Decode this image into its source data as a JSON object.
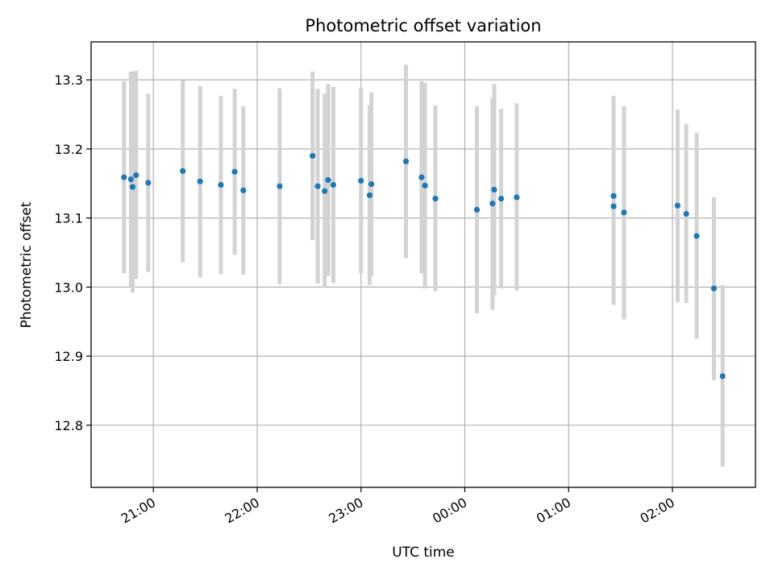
{
  "chart_data": {
    "type": "scatter",
    "title": "Photometric offset variation",
    "xlabel": "UTC time",
    "ylabel": "Photometric offset",
    "x_tick_labels": [
      "21:00",
      "22:00",
      "23:00",
      "00:00",
      "01:00",
      "02:00"
    ],
    "x_tick_values": [
      "21:00",
      "22:00",
      "23:00",
      "00:00",
      "01:00",
      "02:00"
    ],
    "y_tick_labels": [
      "12.8",
      "12.9",
      "13.0",
      "13.1",
      "13.2",
      "13.3"
    ],
    "y_tick_values": [
      12.8,
      12.9,
      13.0,
      13.1,
      13.2,
      13.3
    ],
    "xlim": [
      "20:24",
      "02:48"
    ],
    "ylim": [
      12.71,
      13.355
    ],
    "grid": true,
    "colors": {
      "marker": "#1f77b4",
      "errorbar": "#d3d3d3",
      "grid": "#b0b0b0"
    },
    "points": [
      {
        "x": "20:43",
        "y": 13.159,
        "lo": 13.02,
        "hi": 13.298
      },
      {
        "x": "20:47",
        "y": 13.156,
        "lo": 13.0,
        "hi": 13.312
      },
      {
        "x": "20:48",
        "y": 13.145,
        "lo": 12.992,
        "hi": 13.312
      },
      {
        "x": "20:50",
        "y": 13.162,
        "lo": 13.012,
        "hi": 13.313
      },
      {
        "x": "20:57",
        "y": 13.151,
        "lo": 13.022,
        "hi": 13.28
      },
      {
        "x": "21:17",
        "y": 13.168,
        "lo": 13.036,
        "hi": 13.299
      },
      {
        "x": "21:27",
        "y": 13.153,
        "lo": 13.014,
        "hi": 13.291
      },
      {
        "x": "21:39",
        "y": 13.148,
        "lo": 13.019,
        "hi": 13.277
      },
      {
        "x": "21:47",
        "y": 13.167,
        "lo": 13.047,
        "hi": 13.287
      },
      {
        "x": "21:52",
        "y": 13.14,
        "lo": 13.018,
        "hi": 13.262
      },
      {
        "x": "22:13",
        "y": 13.146,
        "lo": 13.004,
        "hi": 13.288
      },
      {
        "x": "22:32",
        "y": 13.19,
        "lo": 13.068,
        "hi": 13.312
      },
      {
        "x": "22:35",
        "y": 13.146,
        "lo": 13.005,
        "hi": 13.287
      },
      {
        "x": "22:39",
        "y": 13.139,
        "lo": 13.0,
        "hi": 13.28
      },
      {
        "x": "22:41",
        "y": 13.155,
        "lo": 13.016,
        "hi": 13.294
      },
      {
        "x": "22:44",
        "y": 13.148,
        "lo": 13.006,
        "hi": 13.29
      },
      {
        "x": "23:00",
        "y": 13.154,
        "lo": 13.02,
        "hi": 13.289
      },
      {
        "x": "23:05",
        "y": 13.133,
        "lo": 13.003,
        "hi": 13.263
      },
      {
        "x": "23:06",
        "y": 13.149,
        "lo": 13.016,
        "hi": 13.282
      },
      {
        "x": "23:26",
        "y": 13.182,
        "lo": 13.042,
        "hi": 13.322
      },
      {
        "x": "23:35",
        "y": 13.159,
        "lo": 13.02,
        "hi": 13.298
      },
      {
        "x": "23:37",
        "y": 13.147,
        "lo": 12.998,
        "hi": 13.296
      },
      {
        "x": "23:43",
        "y": 13.128,
        "lo": 12.994,
        "hi": 13.263
      },
      {
        "x": "00:07",
        "y": 13.112,
        "lo": 12.962,
        "hi": 13.262
      },
      {
        "x": "00:16",
        "y": 13.121,
        "lo": 12.967,
        "hi": 13.274
      },
      {
        "x": "00:17",
        "y": 13.141,
        "lo": 12.988,
        "hi": 13.294
      },
      {
        "x": "00:21",
        "y": 13.128,
        "lo": 12.998,
        "hi": 13.258
      },
      {
        "x": "00:30",
        "y": 13.13,
        "lo": 12.995,
        "hi": 13.266
      },
      {
        "x": "01:26",
        "y": 13.132,
        "lo": 12.986,
        "hi": 13.277
      },
      {
        "x": "01:26",
        "y": 13.117,
        "lo": 12.974,
        "hi": 13.26
      },
      {
        "x": "01:32",
        "y": 13.108,
        "lo": 12.953,
        "hi": 13.262
      },
      {
        "x": "02:03",
        "y": 13.118,
        "lo": 12.978,
        "hi": 13.257
      },
      {
        "x": "02:08",
        "y": 13.106,
        "lo": 12.977,
        "hi": 13.236
      },
      {
        "x": "02:14",
        "y": 13.074,
        "lo": 12.925,
        "hi": 13.223
      },
      {
        "x": "02:24",
        "y": 12.998,
        "lo": 12.865,
        "hi": 13.13
      },
      {
        "x": "02:29",
        "y": 12.871,
        "lo": 12.74,
        "hi": 13.003
      }
    ]
  }
}
